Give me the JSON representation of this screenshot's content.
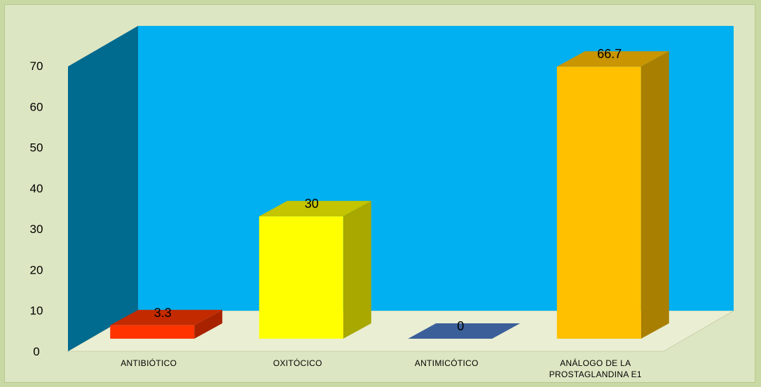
{
  "chart_data": {
    "type": "bar",
    "style": "3d",
    "categories": [
      "ANTIBIÓTICO",
      "OXITÓCICO",
      "ANTIMICÓTICO",
      "ANÁLOGO DE LA PROSTAGLANDINA E1"
    ],
    "category_lines": [
      [
        "ANTIBIÓTICO"
      ],
      [
        "OXITÓCICO"
      ],
      [
        "ANTIMICÓTICO"
      ],
      [
        "ANÁLOGO DE LA",
        "PROSTAGLANDINA E1"
      ]
    ],
    "values": [
      3.3,
      30,
      0,
      66.7
    ],
    "data_labels": [
      "3.3",
      "30",
      "0",
      "66.7"
    ],
    "yticks": [
      0,
      10,
      20,
      30,
      40,
      50,
      60,
      70
    ],
    "ylim": [
      0,
      70
    ],
    "grid": false,
    "legend": "none",
    "colors": {
      "back_wall": "#00b0f0",
      "side_wall": "#006a8f",
      "floor": "#eaeed3",
      "background": "#dde6c2",
      "outer": "#c9d9a4",
      "bars": [
        {
          "front": "#ff3300",
          "side": "#a82200",
          "top": "#c42a00"
        },
        {
          "front": "#ffff00",
          "side": "#a8a800",
          "top": "#c4c400"
        },
        {
          "front": "#3b5f99",
          "side": "#2a4470",
          "top": "#3b5f99"
        },
        {
          "front": "#ffc000",
          "side": "#a87f00",
          "top": "#c99500"
        }
      ]
    }
  }
}
